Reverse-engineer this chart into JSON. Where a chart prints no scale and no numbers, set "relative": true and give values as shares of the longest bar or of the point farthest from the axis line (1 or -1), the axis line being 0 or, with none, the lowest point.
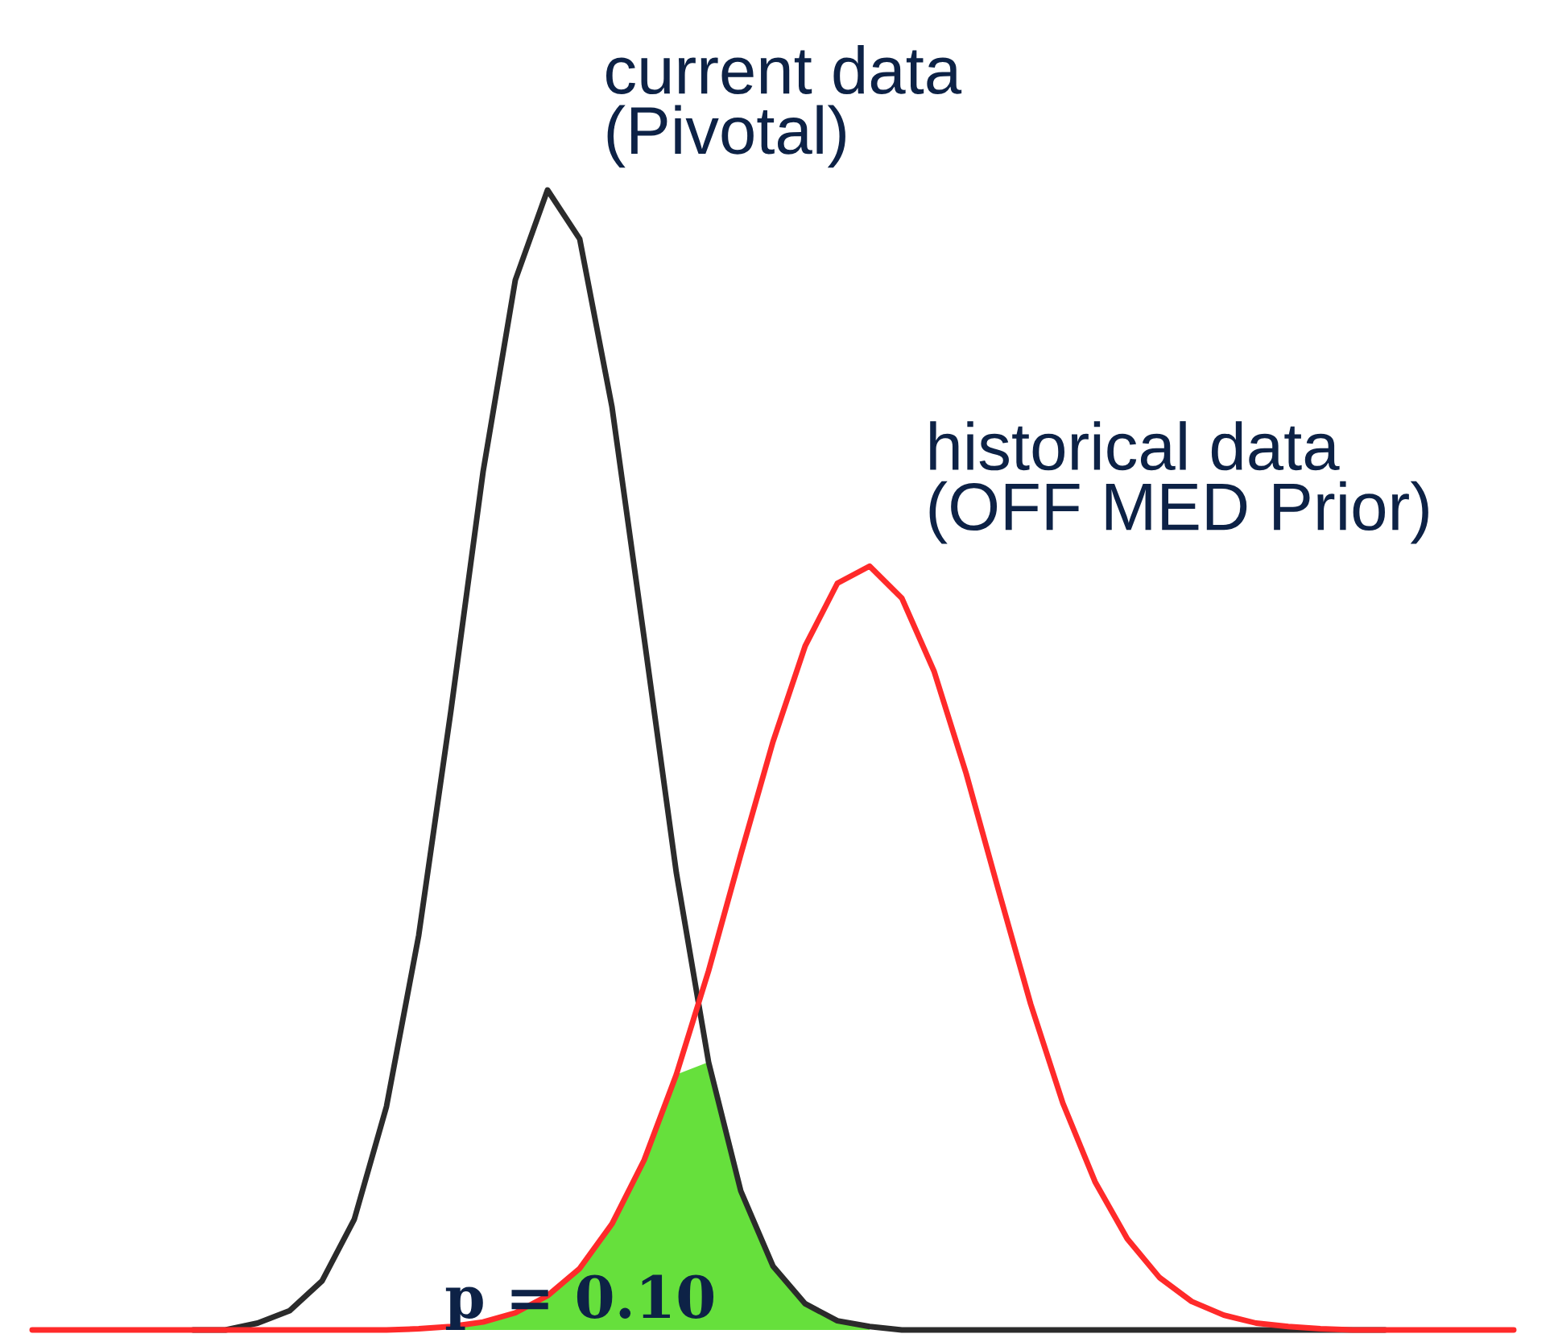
{
  "chart_data": {
    "type": "line",
    "relative": true,
    "categories": [
      null,
      null,
      null,
      null,
      null,
      null,
      null,
      null,
      null,
      null,
      null,
      null,
      null,
      null,
      null,
      null,
      null,
      null,
      null,
      null,
      null,
      null,
      null,
      null,
      null,
      null,
      null,
      null,
      null,
      null,
      null,
      null,
      null,
      null,
      null,
      null,
      null,
      null,
      null,
      null,
      null,
      null,
      null,
      null,
      null,
      null,
      null
    ],
    "series": [
      {
        "name": "current data\n(Pivotal)",
        "color": "#2b2b2b",
        "values": [
          null,
          null,
          null,
          null,
          null,
          0,
          0,
          0.006,
          0.017,
          0.043,
          0.097,
          0.196,
          0.346,
          0.543,
          0.753,
          0.921,
          1,
          0.957,
          0.81,
          0.607,
          0.401,
          0.235,
          0.122,
          0.056,
          0.023,
          0.008,
          0.003,
          0,
          0,
          0,
          0,
          0,
          0,
          0,
          0,
          0,
          0,
          0,
          0,
          0,
          0,
          0,
          0,
          null,
          null,
          null,
          null
        ]
      },
      {
        "name": "historical data\n(OFF MED Prior)",
        "color": "#ff2a2a",
        "values": [
          0,
          0,
          0,
          0,
          0,
          0,
          0,
          0,
          0,
          0,
          0,
          0,
          0.001,
          0.003,
          0.007,
          0.015,
          0.03,
          0.054,
          0.093,
          0.149,
          0.224,
          0.315,
          0.417,
          0.516,
          0.6,
          0.655,
          0.67,
          0.642,
          0.578,
          0.488,
          0.386,
          0.286,
          0.199,
          0.13,
          0.08,
          0.046,
          0.025,
          0.013,
          0.006,
          0.003,
          0.001,
          0,
          0,
          0,
          0,
          0,
          0
        ]
      },
      {
        "type": "area",
        "color": "#66e03c",
        "values": [
          null,
          null,
          null,
          null,
          null,
          null,
          null,
          null,
          null,
          null,
          null,
          null,
          null,
          0.003,
          0.007,
          0.015,
          0.03,
          0.054,
          0.093,
          0.149,
          0.224,
          0.235,
          0.122,
          0.056,
          0.023,
          0.008,
          0.003,
          null,
          null,
          null,
          null,
          null,
          null,
          null,
          null,
          null,
          null,
          null,
          null,
          null,
          null,
          null,
          null,
          null,
          null,
          null,
          null
        ]
      }
    ],
    "annotations": [
      "p = 0.10"
    ],
    "legend": false
  }
}
